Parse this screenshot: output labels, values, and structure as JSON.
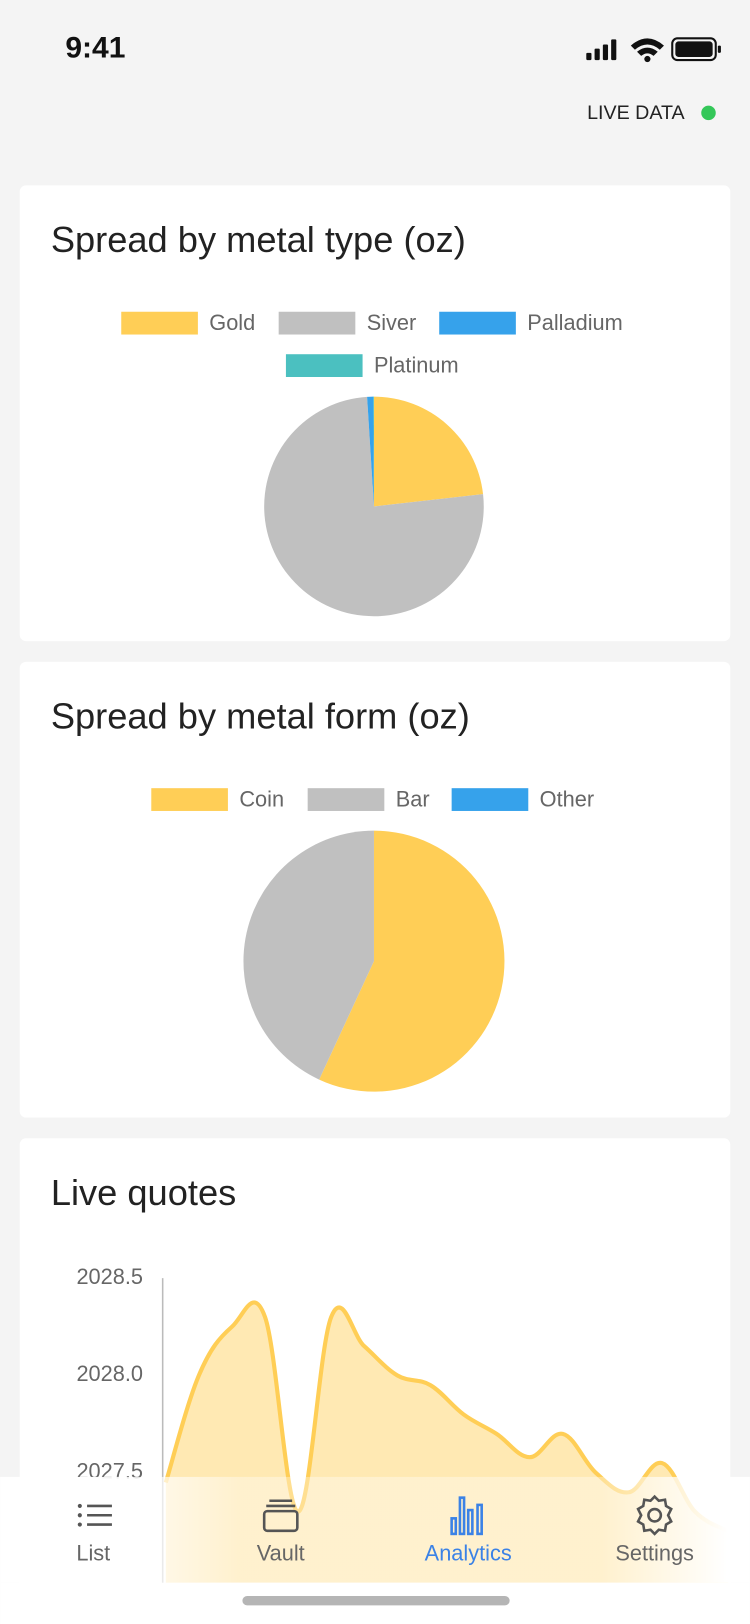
{
  "status_bar": {
    "time": "9:41"
  },
  "live_label": "LIVE DATA",
  "charts": [
    {
      "type": "pie",
      "title": "Spread by metal type (oz)",
      "categories": [
        "Gold",
        "Siver",
        "Palladium",
        "Platinum"
      ],
      "values": [
        23.2,
        75.8,
        0.9,
        0.1
      ],
      "colors": [
        "#ffce56",
        "#c0c0c0",
        "#36a2eb",
        "#4bc0c0"
      ]
    },
    {
      "type": "pie",
      "title": "Spread by metal form (oz)",
      "categories": [
        "Coin",
        "Bar",
        "Other"
      ],
      "values": [
        56.9,
        43.1,
        0
      ],
      "colors": [
        "#ffce56",
        "#c0c0c0",
        "#36a2eb"
      ]
    },
    {
      "type": "area",
      "title": "Live quotes",
      "categories": [
        null,
        null,
        null,
        null,
        null,
        null,
        null,
        null,
        null,
        null,
        null,
        null,
        null,
        null,
        null,
        null,
        null,
        null
      ],
      "values": [
        2027.45,
        2028.0,
        2028.25,
        2028.3,
        2027.3,
        2028.3,
        2028.15,
        2028.0,
        2027.95,
        2027.8,
        2027.7,
        2027.58,
        2027.7,
        2027.5,
        2027.4,
        2027.55,
        2027.3,
        2027.2
      ],
      "color": "#ffce56",
      "ylim": [
        2027.0,
        2028.5
      ],
      "yticks": [
        2027.5,
        {
          "value": 2028,
          "label": "2028.0"
        },
        2028.5
      ],
      "grid": false
    }
  ],
  "tab_bar": {
    "items": [
      "List",
      "Vault",
      "Analytics",
      "Settings"
    ],
    "active": 2
  }
}
